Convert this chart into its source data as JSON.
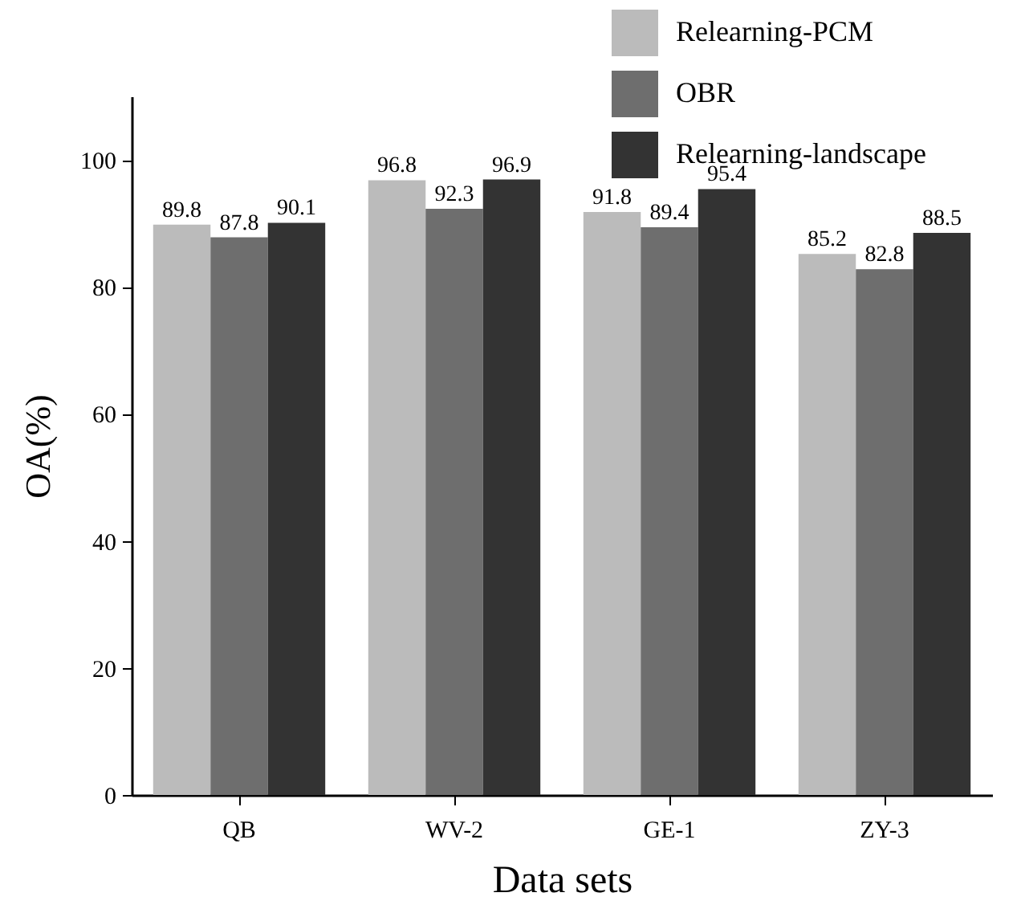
{
  "chart_data": {
    "type": "bar",
    "xlabel": "Data sets",
    "ylabel": "OA(%)",
    "categories": [
      "QB",
      "WV-2",
      "GE-1",
      "ZY-3"
    ],
    "series": [
      {
        "name": "Relearning-PCM",
        "color": "#bbbbbb",
        "values": [
          89.8,
          96.8,
          91.8,
          85.2
        ]
      },
      {
        "name": "OBR",
        "color": "#6e6e6e",
        "values": [
          87.8,
          92.3,
          89.4,
          82.8
        ]
      },
      {
        "name": "Relearning-landscape",
        "color": "#333333",
        "values": [
          90.1,
          96.9,
          95.4,
          88.5
        ]
      }
    ],
    "ylim": [
      0,
      110
    ],
    "yticks": [
      0,
      20,
      40,
      60,
      80,
      100
    ],
    "data_labels": true,
    "legend": "top right"
  }
}
